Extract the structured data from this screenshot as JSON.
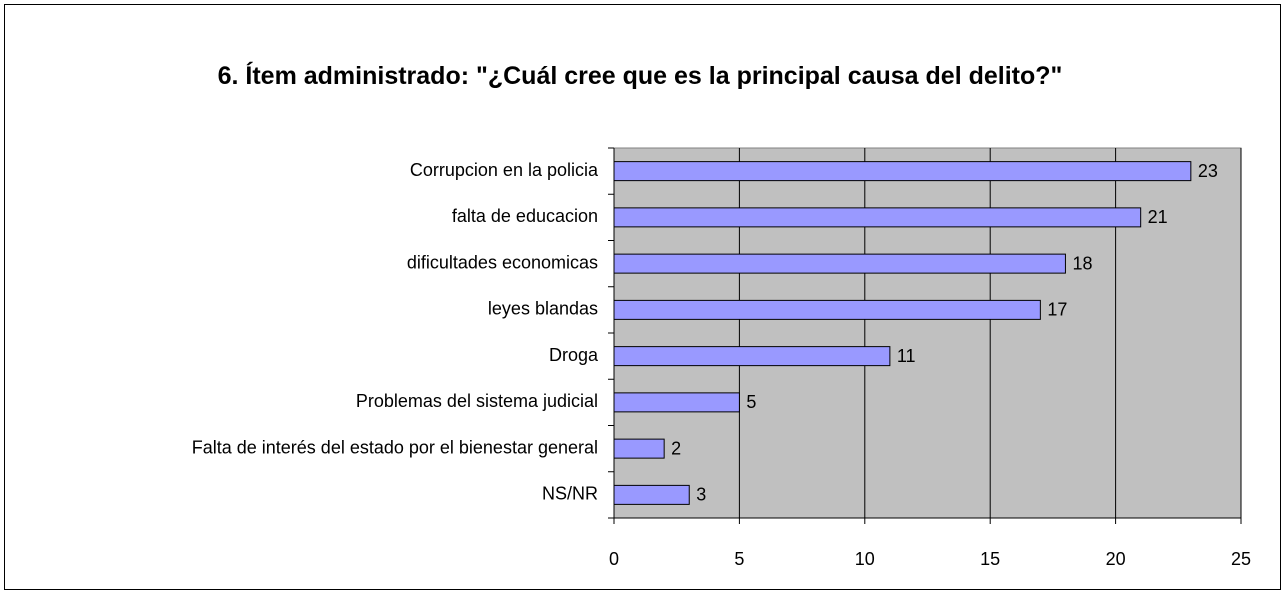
{
  "chart_data": {
    "type": "barh",
    "title": "6. Ítem administrado: \"¿Cuál cree que es la principal causa del delito?\"",
    "categories": [
      "Corrupcion en la policia",
      "falta de educacion",
      "dificultades economicas",
      "leyes blandas",
      "Droga",
      "Problemas del sistema judicial",
      "Falta de interés del estado por el bienestar general",
      "NS/NR"
    ],
    "values": [
      23,
      21,
      18,
      17,
      11,
      5,
      2,
      3
    ],
    "color": "#9999ff",
    "xlim": [
      0,
      25
    ],
    "xticks": [
      0,
      5,
      10,
      15,
      20,
      25
    ],
    "grid": true
  }
}
